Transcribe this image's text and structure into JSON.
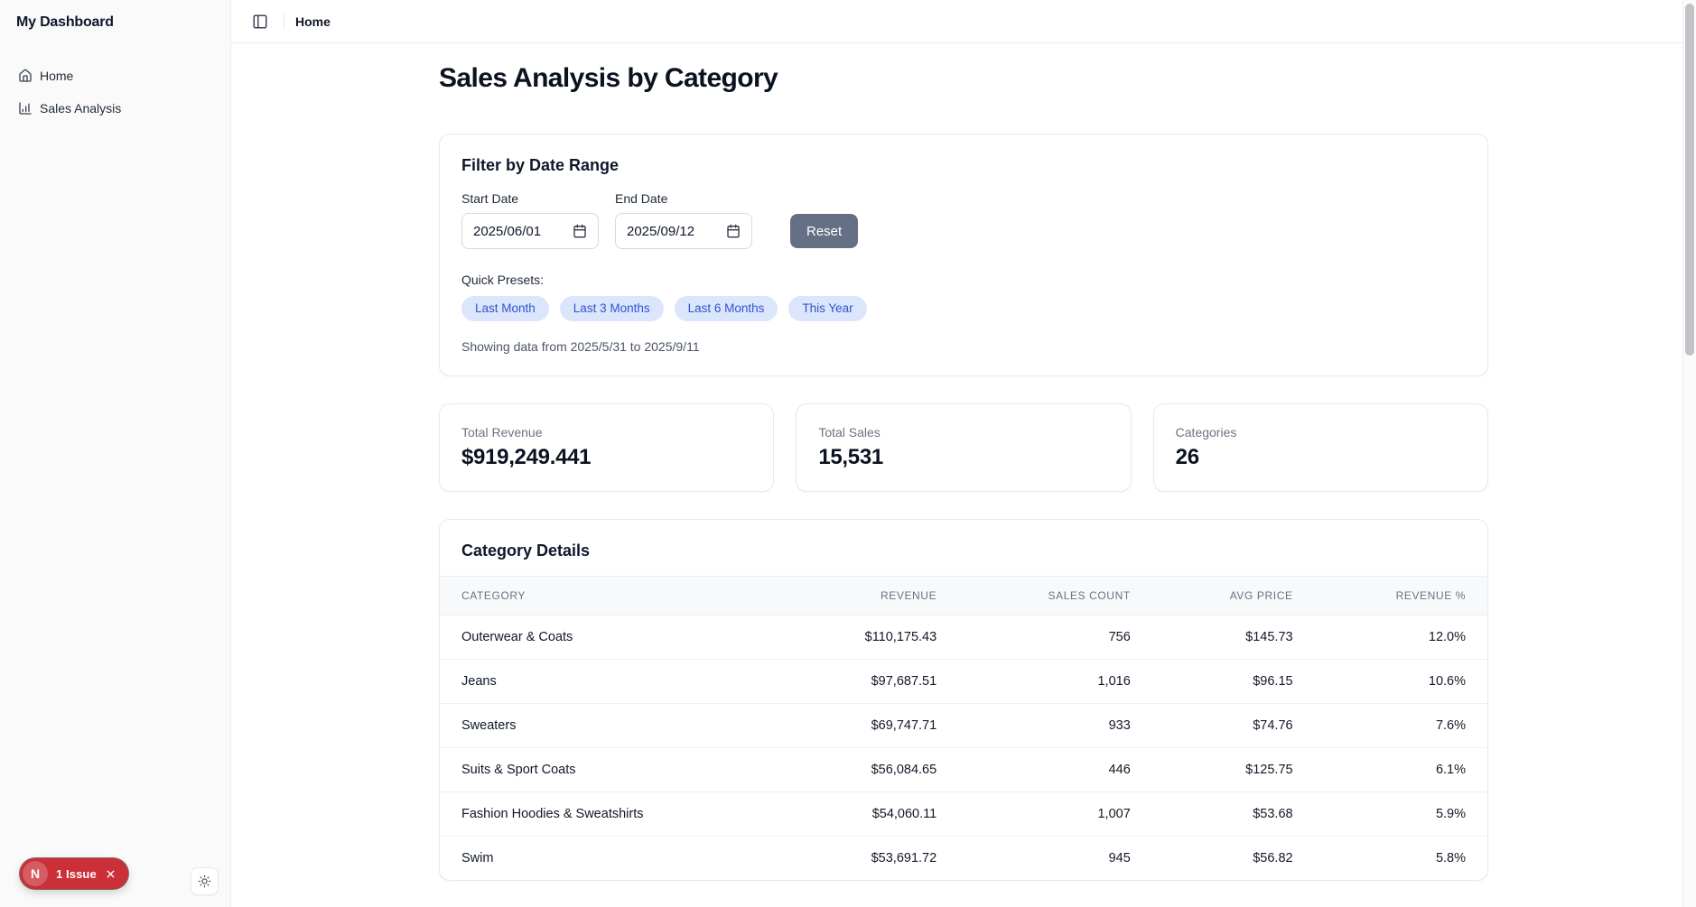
{
  "sidebar": {
    "title": "My Dashboard",
    "items": [
      {
        "label": "Home",
        "icon": "home-icon"
      },
      {
        "label": "Sales Analysis",
        "icon": "bar-chart-icon"
      }
    ],
    "theme_icon": "sun-icon"
  },
  "header": {
    "toggle_icon": "panel-left-icon",
    "breadcrumb": "Home"
  },
  "page_title": "Sales Analysis by Category",
  "filter": {
    "title": "Filter by Date Range",
    "start_label": "Start Date",
    "start_value": "2025/06/01",
    "end_label": "End Date",
    "end_value": "2025/09/12",
    "calendar_icon": "calendar-icon",
    "reset_label": "Reset",
    "presets_label": "Quick Presets:",
    "presets": [
      "Last Month",
      "Last 3 Months",
      "Last 6 Months",
      "This Year"
    ],
    "showing_text": "Showing data from 2025/5/31 to 2025/9/11"
  },
  "stats": [
    {
      "label": "Total Revenue",
      "value": "$919,249.441"
    },
    {
      "label": "Total Sales",
      "value": "15,531"
    },
    {
      "label": "Categories",
      "value": "26"
    }
  ],
  "table": {
    "title": "Category Details",
    "columns": [
      "CATEGORY",
      "REVENUE",
      "SALES COUNT",
      "AVG PRICE",
      "REVENUE %"
    ],
    "rows": [
      [
        "Outerwear & Coats",
        "$110,175.43",
        "756",
        "$145.73",
        "12.0%"
      ],
      [
        "Jeans",
        "$97,687.51",
        "1,016",
        "$96.15",
        "10.6%"
      ],
      [
        "Sweaters",
        "$69,747.71",
        "933",
        "$74.76",
        "7.6%"
      ],
      [
        "Suits & Sport Coats",
        "$56,084.65",
        "446",
        "$125.75",
        "6.1%"
      ],
      [
        "Fashion Hoodies & Sweatshirts",
        "$54,060.11",
        "1,007",
        "$53.68",
        "5.9%"
      ],
      [
        "Swim",
        "$53,691.72",
        "945",
        "$56.82",
        "5.8%"
      ]
    ]
  },
  "dev_badge": {
    "logo": "nextjs-logo",
    "label": "1 Issue",
    "close_icon": "close-icon"
  },
  "colors": {
    "preset_bg": "#dbe5fb",
    "preset_text": "#2f55d0",
    "reset_bg": "#667085",
    "badge_red": "#cb2f38",
    "text_dark": "#0f172a",
    "text_muted": "#6b7280",
    "border": "#e7e9ee",
    "sidebar_bg": "#fafafa",
    "table_header_bg": "#f8f9fb"
  }
}
